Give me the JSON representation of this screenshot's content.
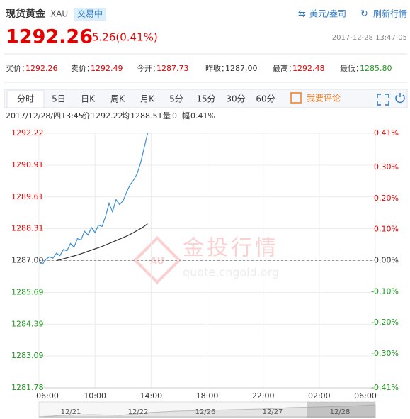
{
  "header": {
    "title": "现货黄金",
    "code": "XAU",
    "status": "交易中",
    "unit": "美元/盎司",
    "refresh": "刷新行情"
  },
  "quote": {
    "price": "1292.26",
    "change": "5.26(0.41%)",
    "time": "2017-12-28 13:47:05"
  },
  "stats": [
    {
      "label": "买价：",
      "value": "1292.26"
    },
    {
      "label": "卖价：",
      "value": "1292.49"
    },
    {
      "label": "今开：",
      "value": "1287.73"
    },
    {
      "label": "昨收：",
      "value": "1287.00"
    },
    {
      "label": "最高：",
      "value": "1292.48"
    },
    {
      "label": "最低：",
      "value": "1285.80"
    }
  ],
  "tabs": [
    "分时",
    "5日",
    "日K",
    "周K",
    "月K",
    "5分",
    "15分",
    "30分",
    "60分"
  ],
  "comment": "我要评论",
  "status_line": {
    "datetime": "2017/12/28/四13:45",
    "price_label": "价",
    "price": "1292.22",
    "avg_label": "均",
    "avg": "1288.51",
    "volume_label": "量",
    "volume": "0",
    "range_label": "幅",
    "range": "0.41%"
  },
  "watermark": {
    "text": "金投行情",
    "url": "quote.cngold.org",
    "logo": "AU"
  },
  "navigator": {
    "dates": [
      "12/21",
      "12/22",
      "12/26",
      "12/27",
      "12/28"
    ]
  },
  "chart_data": {
    "type": "line",
    "x": [
      "06:00",
      "06:15",
      "06:30",
      "06:45",
      "07:00",
      "07:15",
      "07:30",
      "07:45",
      "08:00",
      "08:15",
      "08:30",
      "08:45",
      "09:00",
      "09:15",
      "09:30",
      "09:45",
      "10:00",
      "10:15",
      "10:30",
      "10:45",
      "11:00",
      "11:15",
      "11:30",
      "11:45",
      "12:00",
      "12:15",
      "12:30",
      "12:45",
      "13:00",
      "13:15",
      "13:30",
      "13:45"
    ],
    "series": [
      {
        "color": "#3a8fd8",
        "values": [
          1286.95,
          1286.85,
          1287.05,
          1287.15,
          1287.1,
          1287.3,
          1287.2,
          1287.45,
          1287.4,
          1287.7,
          1287.55,
          1287.9,
          1287.85,
          1288.2,
          1288.05,
          1288.35,
          1288.15,
          1288.45,
          1288.4,
          1288.8,
          1289.35,
          1289.0,
          1289.5,
          1289.3,
          1289.45,
          1289.8,
          1290.1,
          1290.3,
          1290.55,
          1291.0,
          1291.6,
          1292.22
        ]
      },
      {
        "color": "#333333",
        "values": [
          null,
          null,
          null,
          null,
          null,
          1287.0,
          1287.03,
          1287.07,
          1287.11,
          1287.15,
          1287.19,
          1287.23,
          1287.28,
          1287.33,
          1287.38,
          1287.43,
          1287.48,
          1287.53,
          1287.58,
          1287.64,
          1287.7,
          1287.76,
          1287.82,
          1287.88,
          1287.94,
          1288.0,
          1288.07,
          1288.15,
          1288.23,
          1288.31,
          1288.4,
          1288.51
        ]
      }
    ],
    "baseline": 1287,
    "ylim": [
      1281.78,
      1292.22
    ],
    "yticks": [
      1292.22,
      1290.91,
      1289.61,
      1288.31,
      {
        "value": 1287,
        "label": "1287.00"
      },
      1285.69,
      1284.39,
      1283.09,
      1281.78
    ],
    "y2lim": [
      -0.41,
      0.41
    ],
    "y2ticks": [
      {
        "value": 0.41,
        "label": "0.41%"
      },
      {
        "value": 0.3,
        "label": "0.30%"
      },
      {
        "value": 0.2,
        "label": "0.20%"
      },
      {
        "value": 0.1,
        "label": "0.10%"
      },
      {
        "value": 0,
        "label": "0.00%"
      },
      {
        "value": -0.1,
        "label": "-0.10%"
      },
      {
        "value": -0.2,
        "label": "-0.20%"
      },
      {
        "value": -0.3,
        "label": "-0.30%"
      },
      {
        "value": -0.41,
        "label": "-0.41%"
      }
    ],
    "xticks": [
      "06:00",
      "10:00",
      "14:00",
      "18:00",
      "22:00",
      "02:00",
      "06:00"
    ],
    "grid": true
  }
}
